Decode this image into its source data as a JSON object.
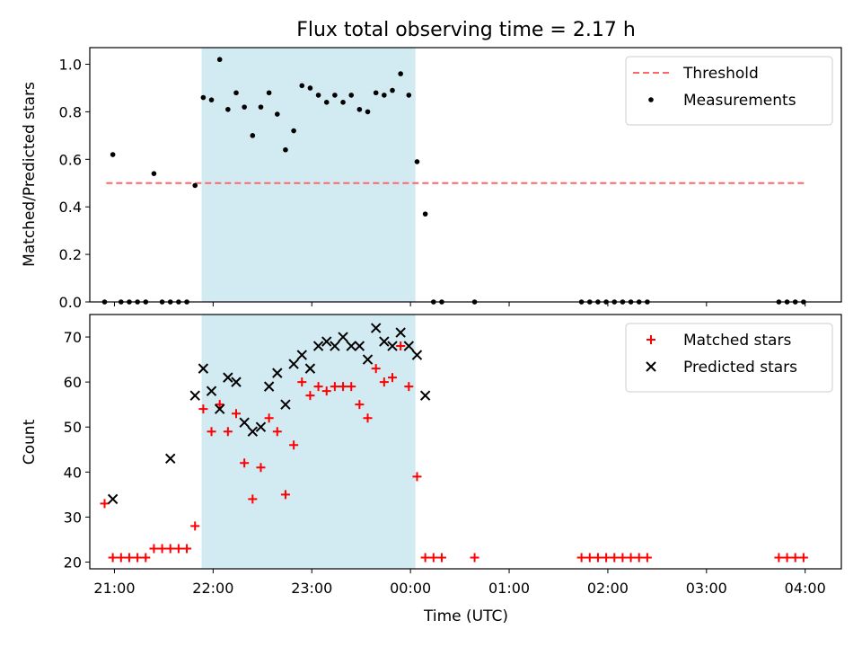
{
  "title": "Flux total observing time = 2.17 h",
  "colors": {
    "shade": "#add8e6",
    "threshold": "#ff6666",
    "measurement": "#000000",
    "matched": "#ff0000",
    "predicted": "#000000"
  },
  "chart_data": [
    {
      "type": "scatter",
      "ylabel": "Matched/Predicted stars",
      "ylim": [
        0,
        1.07
      ],
      "yticks": [
        0.0,
        0.2,
        0.4,
        0.6,
        0.8,
        1.0
      ],
      "ytick_labels": [
        "0.0",
        "0.2",
        "0.4",
        "0.6",
        "0.8",
        "1.0"
      ],
      "xlim": [
        "20:45",
        "04:22"
      ],
      "shaded_interval": [
        "21:53",
        "00:03"
      ],
      "legend_position": "top-right",
      "threshold": {
        "name": "Threshold",
        "value": 0.5,
        "x_range": [
          "20:55",
          "04:00"
        ],
        "style": "dashed"
      },
      "series": [
        {
          "name": "Measurements",
          "marker": "dot",
          "x": [
            "20:54",
            "20:59",
            "21:04",
            "21:09",
            "21:14",
            "21:19",
            "21:24",
            "21:29",
            "21:34",
            "21:39",
            "21:44",
            "21:49",
            "21:54",
            "21:59",
            "22:04",
            "22:09",
            "22:14",
            "22:19",
            "22:24",
            "22:29",
            "22:34",
            "22:39",
            "22:44",
            "22:49",
            "22:54",
            "22:59",
            "23:04",
            "23:09",
            "23:14",
            "23:19",
            "23:24",
            "23:29",
            "23:34",
            "23:39",
            "23:44",
            "23:49",
            "23:54",
            "23:59",
            "00:04",
            "00:09",
            "00:14",
            "00:19",
            "00:39",
            "01:44",
            "01:49",
            "01:54",
            "01:59",
            "02:04",
            "02:09",
            "02:14",
            "02:19",
            "02:24",
            "03:44",
            "03:49",
            "03:54",
            "03:59"
          ],
          "y": [
            0,
            0.62,
            0,
            0,
            0,
            0,
            0.54,
            0,
            0,
            0,
            0,
            0.49,
            0.86,
            0.85,
            1.02,
            0.81,
            0.88,
            0.82,
            0.7,
            0.82,
            0.88,
            0.79,
            0.64,
            0.72,
            0.91,
            0.9,
            0.87,
            0.84,
            0.87,
            0.84,
            0.87,
            0.81,
            0.8,
            0.88,
            0.87,
            0.89,
            0.96,
            0.87,
            0.59,
            0.37,
            0,
            0,
            0,
            0,
            0,
            0,
            0,
            0,
            0,
            0,
            0,
            0,
            0,
            0,
            0,
            0
          ]
        }
      ]
    },
    {
      "type": "scatter",
      "ylabel": "Count",
      "xlabel": "Time (UTC)",
      "ylim": [
        18.5,
        75
      ],
      "yticks": [
        20,
        30,
        40,
        50,
        60,
        70
      ],
      "ytick_labels": [
        "20",
        "30",
        "40",
        "50",
        "60",
        "70"
      ],
      "xticks": [
        "21:00",
        "22:00",
        "23:00",
        "00:00",
        "01:00",
        "02:00",
        "03:00",
        "04:00"
      ],
      "xlim": [
        "20:45",
        "04:22"
      ],
      "shaded_interval": [
        "21:53",
        "00:03"
      ],
      "legend_position": "top-right",
      "series": [
        {
          "name": "Matched stars",
          "marker": "plus",
          "x": [
            "20:54",
            "20:59",
            "21:04",
            "21:09",
            "21:14",
            "21:19",
            "21:24",
            "21:29",
            "21:34",
            "21:39",
            "21:44",
            "21:49",
            "21:54",
            "21:59",
            "22:04",
            "22:09",
            "22:14",
            "22:19",
            "22:24",
            "22:29",
            "22:34",
            "22:39",
            "22:44",
            "22:49",
            "22:54",
            "22:59",
            "23:04",
            "23:09",
            "23:14",
            "23:19",
            "23:24",
            "23:29",
            "23:34",
            "23:39",
            "23:44",
            "23:49",
            "23:54",
            "23:59",
            "00:04",
            "00:09",
            "00:14",
            "00:19",
            "00:39",
            "01:44",
            "01:49",
            "01:54",
            "01:59",
            "02:04",
            "02:09",
            "02:14",
            "02:19",
            "02:24",
            "03:44",
            "03:49",
            "03:54",
            "03:59"
          ],
          "y": [
            33,
            21,
            21,
            21,
            21,
            21,
            23,
            23,
            23,
            23,
            23,
            28,
            54,
            49,
            55,
            49,
            53,
            42,
            34,
            41,
            52,
            49,
            35,
            46,
            60,
            57,
            59,
            58,
            59,
            59,
            59,
            55,
            52,
            63,
            60,
            61,
            68,
            59,
            39,
            21,
            21,
            21,
            21,
            21,
            21,
            21,
            21,
            21,
            21,
            21,
            21,
            21,
            21,
            21,
            21,
            21
          ]
        },
        {
          "name": "Predicted stars",
          "marker": "x",
          "x": [
            "20:59",
            "21:34",
            "21:49",
            "21:54",
            "21:59",
            "22:04",
            "22:09",
            "22:14",
            "22:19",
            "22:24",
            "22:29",
            "22:34",
            "22:39",
            "22:44",
            "22:49",
            "22:54",
            "22:59",
            "23:04",
            "23:09",
            "23:14",
            "23:19",
            "23:24",
            "23:29",
            "23:34",
            "23:39",
            "23:44",
            "23:49",
            "23:54",
            "23:59",
            "00:04",
            "00:09"
          ],
          "y": [
            34,
            43,
            57,
            63,
            58,
            54,
            61,
            60,
            51,
            49,
            50,
            59,
            62,
            55,
            64,
            66,
            63,
            68,
            69,
            68,
            70,
            68,
            68,
            65,
            72,
            69,
            68,
            71,
            68,
            66,
            57
          ]
        }
      ]
    }
  ]
}
